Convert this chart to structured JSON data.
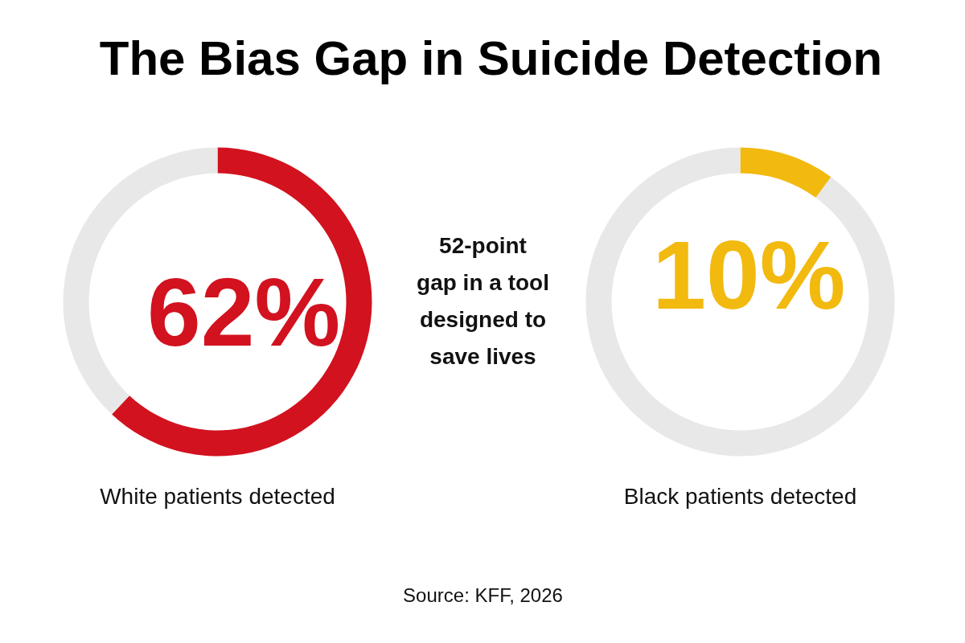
{
  "chart_data": [
    {
      "type": "donut",
      "title": "The Bias Gap in Suicide Detection",
      "categories": [
        null,
        null
      ],
      "values": [
        62,
        38
      ],
      "colors": [
        "#d2121f",
        "#e8e8e8"
      ],
      "value_labels": [
        "62%",
        null
      ],
      "xlabel": "White patients detected"
    },
    {
      "type": "other",
      "annotations": [
        "52-point\ngap in a tool\ndesigned to\nsave lives",
        "Source: KFF, 2026"
      ]
    },
    {
      "type": "donut",
      "categories": [
        null,
        null
      ],
      "values": [
        10,
        90
      ],
      "colors": [
        "#f2b90f",
        "#e8e8e8"
      ],
      "value_labels": [
        "10%",
        null
      ],
      "xlabel": "Black patients detected"
    }
  ]
}
